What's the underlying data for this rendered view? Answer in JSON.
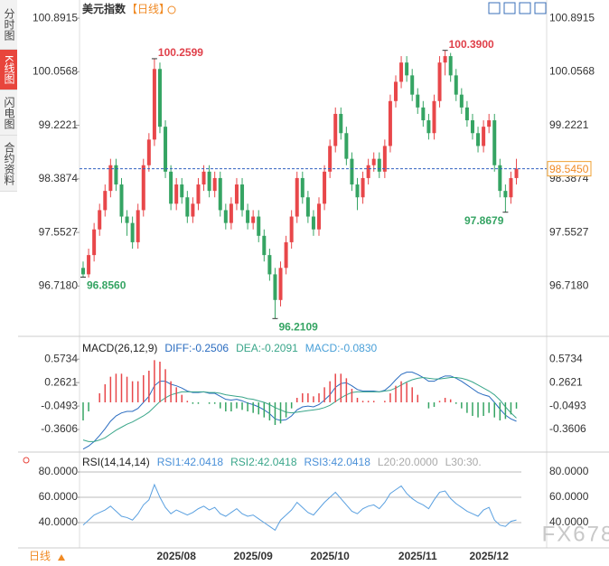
{
  "sidebar": [
    "分时图",
    "K线图",
    "闪电图",
    "合约资料"
  ],
  "chart_data": [
    {
      "type": "candlestick",
      "title": "美元指数",
      "period_tag": "【日线】",
      "categories": [
        null,
        null,
        null,
        null,
        null,
        null,
        null,
        null,
        null,
        null,
        null,
        null,
        null,
        null,
        null,
        null,
        null,
        "2025/08",
        null,
        null,
        null,
        null,
        null,
        null,
        null,
        null,
        null,
        null,
        null,
        null,
        null,
        "2025/09",
        null,
        null,
        null,
        null,
        null,
        null,
        null,
        null,
        null,
        null,
        null,
        null,
        null,
        "2025/10",
        null,
        null,
        null,
        null,
        null,
        null,
        null,
        null,
        null,
        null,
        null,
        null,
        null,
        null,
        null,
        "2025/11",
        null,
        null,
        null,
        null,
        null,
        null,
        null,
        null,
        null,
        null,
        null,
        null,
        "2025/12",
        null,
        null,
        null,
        null,
        null
      ],
      "ohlc": [
        [
          97.0,
          97.1,
          96.856,
          96.9
        ],
        [
          96.9,
          97.3,
          96.85,
          97.2
        ],
        [
          97.2,
          97.7,
          97.1,
          97.6
        ],
        [
          97.6,
          98.0,
          97.5,
          97.9
        ],
        [
          97.9,
          98.3,
          97.8,
          98.2
        ],
        [
          98.2,
          98.7,
          98.1,
          98.6
        ],
        [
          98.6,
          98.7,
          98.2,
          98.3
        ],
        [
          98.3,
          98.4,
          97.7,
          97.8
        ],
        [
          97.8,
          97.9,
          97.5,
          97.7
        ],
        [
          97.7,
          97.8,
          97.3,
          97.4
        ],
        [
          97.4,
          98.0,
          97.3,
          97.9
        ],
        [
          97.9,
          98.7,
          97.8,
          98.6
        ],
        [
          98.6,
          99.1,
          98.5,
          99.0
        ],
        [
          99.0,
          100.2599,
          98.9,
          100.1
        ],
        [
          100.1,
          100.2,
          99.1,
          99.2
        ],
        [
          99.2,
          99.3,
          98.4,
          98.5
        ],
        [
          98.5,
          98.6,
          97.9,
          98.0
        ],
        [
          98.0,
          98.4,
          97.9,
          98.3
        ],
        [
          98.3,
          98.4,
          98.0,
          98.1
        ],
        [
          98.1,
          98.2,
          97.7,
          97.8
        ],
        [
          97.8,
          98.1,
          97.7,
          98.0
        ],
        [
          98.0,
          98.4,
          97.9,
          98.3
        ],
        [
          98.3,
          98.6,
          98.2,
          98.5
        ],
        [
          98.5,
          98.6,
          98.1,
          98.2
        ],
        [
          98.2,
          98.5,
          98.1,
          98.4
        ],
        [
          98.4,
          98.5,
          97.8,
          97.9
        ],
        [
          97.9,
          98.0,
          97.6,
          97.7
        ],
        [
          97.7,
          98.1,
          97.6,
          98.0
        ],
        [
          98.0,
          98.4,
          97.9,
          98.3
        ],
        [
          98.3,
          98.4,
          97.8,
          97.9
        ],
        [
          97.9,
          98.0,
          97.6,
          97.7
        ],
        [
          97.7,
          97.9,
          97.6,
          97.8
        ],
        [
          97.8,
          97.9,
          97.4,
          97.5
        ],
        [
          97.5,
          97.6,
          97.1,
          97.2
        ],
        [
          97.2,
          97.3,
          96.8,
          96.9
        ],
        [
          96.9,
          97.0,
          96.2109,
          96.5
        ],
        [
          96.5,
          97.1,
          96.4,
          97.0
        ],
        [
          97.0,
          97.5,
          96.9,
          97.4
        ],
        [
          97.4,
          97.9,
          97.3,
          97.8
        ],
        [
          97.8,
          98.5,
          97.7,
          98.4
        ],
        [
          98.4,
          98.5,
          98.0,
          98.1
        ],
        [
          98.1,
          98.2,
          97.7,
          97.8
        ],
        [
          97.8,
          97.9,
          97.5,
          97.6
        ],
        [
          97.6,
          98.1,
          97.5,
          98.0
        ],
        [
          98.0,
          98.6,
          97.9,
          98.5
        ],
        [
          98.5,
          99.0,
          98.4,
          98.9
        ],
        [
          98.9,
          99.5,
          98.8,
          99.4
        ],
        [
          99.4,
          99.5,
          99.0,
          99.1
        ],
        [
          99.1,
          99.2,
          98.6,
          98.7
        ],
        [
          98.7,
          98.8,
          98.2,
          98.3
        ],
        [
          98.3,
          98.4,
          97.9,
          98.1
        ],
        [
          98.1,
          98.5,
          98.0,
          98.4
        ],
        [
          98.4,
          98.7,
          98.3,
          98.6
        ],
        [
          98.6,
          98.8,
          98.5,
          98.7
        ],
        [
          98.7,
          98.8,
          98.4,
          98.5
        ],
        [
          98.5,
          99.0,
          98.4,
          98.9
        ],
        [
          98.9,
          99.7,
          98.8,
          99.6
        ],
        [
          99.6,
          100.0,
          99.5,
          99.9
        ],
        [
          99.9,
          100.3,
          99.8,
          100.2
        ],
        [
          100.2,
          100.3,
          99.9,
          100.0
        ],
        [
          100.0,
          100.1,
          99.6,
          99.7
        ],
        [
          99.7,
          99.8,
          99.4,
          99.5
        ],
        [
          99.5,
          99.6,
          99.2,
          99.3
        ],
        [
          99.3,
          99.4,
          99.0,
          99.1
        ],
        [
          99.1,
          99.7,
          99.0,
          99.6
        ],
        [
          99.6,
          100.3,
          99.5,
          100.2
        ],
        [
          100.2,
          100.39,
          100.0,
          100.3
        ],
        [
          100.3,
          100.35,
          99.9,
          100.0
        ],
        [
          100.0,
          100.1,
          99.6,
          99.7
        ],
        [
          99.7,
          99.8,
          99.4,
          99.5
        ],
        [
          99.5,
          99.6,
          99.2,
          99.3
        ],
        [
          99.3,
          99.4,
          99.0,
          99.1
        ],
        [
          99.1,
          99.2,
          98.8,
          98.9
        ],
        [
          98.9,
          99.3,
          98.8,
          99.2
        ],
        [
          99.2,
          99.4,
          99.1,
          99.3
        ],
        [
          99.3,
          99.4,
          98.5,
          98.6
        ],
        [
          98.6,
          98.7,
          98.1,
          98.2
        ],
        [
          98.2,
          98.3,
          97.8679,
          98.1
        ],
        [
          98.1,
          98.5,
          98.0,
          98.4
        ],
        [
          98.4,
          98.7,
          98.3,
          98.545
        ]
      ],
      "up_color": "#e8474a",
      "down_color": "#35a463",
      "ylim": [
        95.99,
        101.09
      ],
      "yticks": [
        {
          "value": 96.718,
          "label": "96.7180"
        },
        97.5527,
        98.3874,
        99.2221,
        100.0568,
        100.8915
      ],
      "last_price": {
        "value": 98.545,
        "label": "98.5450"
      },
      "annotations": [
        100.2599,
        {
          "value": 96.856,
          "label": "96.8560"
        },
        96.2109,
        {
          "value": 100.39,
          "label": "100.3900"
        },
        97.8679
      ]
    },
    {
      "type": "macd",
      "legend": [
        {
          "text": "MACD(26,12,9)",
          "color": "#222222"
        },
        {
          "text": "DIFF:-0.2506",
          "color": "#2a6cc0"
        },
        {
          "text": "DEA:-0.2091",
          "color": "#3aa68a"
        },
        {
          "text": "MACD:-0.0830",
          "color": "#4aa0d8"
        }
      ],
      "series": [
        {
          "color": "#2a6cc0",
          "values": [
            -0.62,
            -0.58,
            -0.52,
            -0.44,
            -0.35,
            -0.25,
            -0.18,
            -0.14,
            -0.12,
            -0.12,
            -0.08,
            0.0,
            0.08,
            0.22,
            0.28,
            0.28,
            0.24,
            0.22,
            0.19,
            0.15,
            0.13,
            0.13,
            0.14,
            0.12,
            0.12,
            0.08,
            0.04,
            0.03,
            0.04,
            0.02,
            -0.01,
            -0.03,
            -0.06,
            -0.1,
            -0.15,
            -0.22,
            -0.24,
            -0.23,
            -0.18,
            -0.1,
            -0.06,
            -0.05,
            -0.06,
            -0.03,
            0.03,
            0.1,
            0.2,
            0.25,
            0.26,
            0.22,
            0.17,
            0.15,
            0.15,
            0.15,
            0.14,
            0.16,
            0.22,
            0.3,
            0.37,
            0.4,
            0.4,
            0.37,
            0.33,
            0.28,
            0.28,
            0.32,
            0.35,
            0.35,
            0.32,
            0.28,
            0.23,
            0.18,
            0.13,
            0.1,
            0.08,
            0.0,
            -0.09,
            -0.17,
            -0.22,
            -0.2506
          ]
        },
        {
          "color": "#3aa68a",
          "values": [
            -0.5,
            -0.52,
            -0.52,
            -0.5,
            -0.47,
            -0.42,
            -0.37,
            -0.33,
            -0.29,
            -0.26,
            -0.22,
            -0.18,
            -0.13,
            -0.06,
            0.01,
            0.06,
            0.1,
            0.12,
            0.14,
            0.14,
            0.14,
            0.14,
            0.14,
            0.13,
            0.13,
            0.12,
            0.1,
            0.09,
            0.08,
            0.07,
            0.05,
            0.04,
            0.02,
            0.0,
            -0.03,
            -0.07,
            -0.1,
            -0.13,
            -0.14,
            -0.13,
            -0.12,
            -0.11,
            -0.1,
            -0.09,
            -0.07,
            -0.04,
            0.01,
            0.06,
            0.1,
            0.13,
            0.14,
            0.14,
            0.14,
            0.14,
            0.14,
            0.15,
            0.16,
            0.19,
            0.23,
            0.27,
            0.3,
            0.32,
            0.33,
            0.32,
            0.31,
            0.31,
            0.32,
            0.33,
            0.33,
            0.32,
            0.3,
            0.27,
            0.23,
            0.19,
            0.15,
            0.1,
            0.03,
            -0.06,
            -0.14,
            -0.2091
          ]
        },
        {
          "type": "bar",
          "up_color": "#e8474a",
          "down_color": "#35a463",
          "values": [
            -0.24,
            -0.12,
            0,
            0.12,
            0.24,
            0.34,
            0.38,
            0.38,
            0.34,
            0.28,
            0.28,
            0.36,
            0.42,
            0.56,
            0.54,
            0.44,
            0.28,
            0.2,
            0.1,
            0.02,
            -0.02,
            -0.02,
            0,
            -0.02,
            -0.02,
            -0.08,
            -0.12,
            -0.12,
            -0.08,
            -0.1,
            -0.12,
            -0.14,
            -0.16,
            -0.2,
            -0.24,
            -0.3,
            -0.28,
            -0.2,
            -0.08,
            0.06,
            0.12,
            0.12,
            0.08,
            0.12,
            0.2,
            0.28,
            0.38,
            0.38,
            0.32,
            0.18,
            0.06,
            0.02,
            0.02,
            0.02,
            0,
            0.02,
            0.12,
            0.22,
            0.28,
            0.26,
            0.2,
            0.1,
            0,
            -0.08,
            -0.06,
            0.02,
            0.06,
            0.04,
            -0.02,
            -0.08,
            -0.14,
            -0.18,
            -0.2,
            -0.18,
            -0.14,
            -0.2,
            -0.24,
            -0.22,
            -0.16,
            -0.083
          ]
        }
      ],
      "ylim": [
        -0.66,
        0.78
      ],
      "yticks": [
        -0.3606,
        -0.0493,
        0.2621,
        0.5734
      ]
    },
    {
      "type": "rsi",
      "legend": [
        {
          "text": "RSI(14,14,14)",
          "color": "#222222"
        },
        {
          "text": "RSI1:42.0418",
          "color": "#4a90d8"
        },
        {
          "text": "RSI2:42.0418",
          "color": "#3aa68a"
        },
        {
          "text": "RSI3:42.0418",
          "color": "#4a90d8"
        },
        {
          "text": "L20:20.0000",
          "color": "#aaaaaa"
        },
        {
          "text": "L30:30.",
          "color": "#aaaaaa"
        }
      ],
      "series": [
        {
          "color": "#5aa0e0",
          "values": [
            38,
            42,
            46,
            48,
            50,
            53,
            49,
            45,
            44,
            42,
            47,
            54,
            58,
            70,
            60,
            52,
            47,
            50,
            48,
            46,
            48,
            51,
            53,
            50,
            52,
            47,
            45,
            48,
            51,
            47,
            45,
            46,
            43,
            40,
            37,
            34,
            42,
            46,
            50,
            56,
            52,
            48,
            46,
            51,
            56,
            60,
            64,
            59,
            54,
            49,
            47,
            51,
            53,
            54,
            51,
            56,
            63,
            66,
            69,
            63,
            59,
            56,
            54,
            51,
            58,
            64,
            65,
            59,
            55,
            52,
            49,
            47,
            45,
            50,
            52,
            42,
            38,
            37,
            41,
            42.0418
          ]
        }
      ],
      "ylim": [
        20,
        88.6
      ],
      "grid": true,
      "yticks": [
        {
          "value": 40,
          "label": "40.0000"
        },
        {
          "value": 60,
          "label": "60.0000"
        },
        {
          "value": 80,
          "label": "80.0000"
        }
      ]
    }
  ],
  "footer": {
    "period": "日线",
    "watermark": "FX678"
  }
}
